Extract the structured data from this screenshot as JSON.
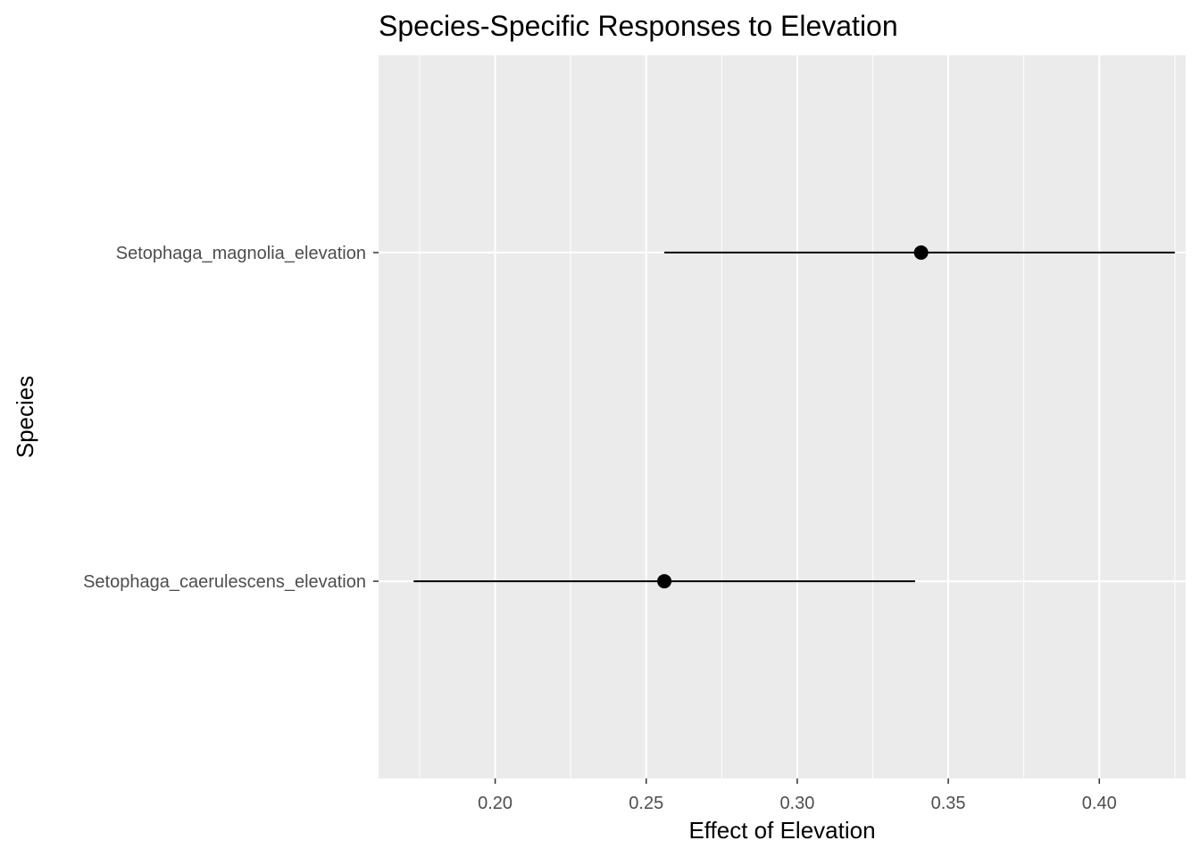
{
  "chart_data": {
    "type": "scatter",
    "title": "Species-Specific Responses to Elevation",
    "xlabel": "Effect of Elevation",
    "ylabel": "Species",
    "xlim": [
      0.1614,
      0.4286
    ],
    "x_ticks": [
      "0.20",
      "0.25",
      "0.30",
      "0.35",
      "0.40"
    ],
    "categories": [
      "Setophaga_caerulescens_elevation",
      "Setophaga_magnolia_elevation"
    ],
    "points": [
      {
        "species": "Setophaga_caerulescens_elevation",
        "estimate": 0.256,
        "lower": 0.173,
        "upper": 0.339
      },
      {
        "species": "Setophaga_magnolia_elevation",
        "estimate": 0.341,
        "lower": 0.256,
        "upper": 0.425
      }
    ],
    "grid": true,
    "colors": {
      "panel": "#ebebeb",
      "grid": "#ffffff",
      "point": "#000000",
      "tick_text": "#4d4d4d"
    }
  }
}
